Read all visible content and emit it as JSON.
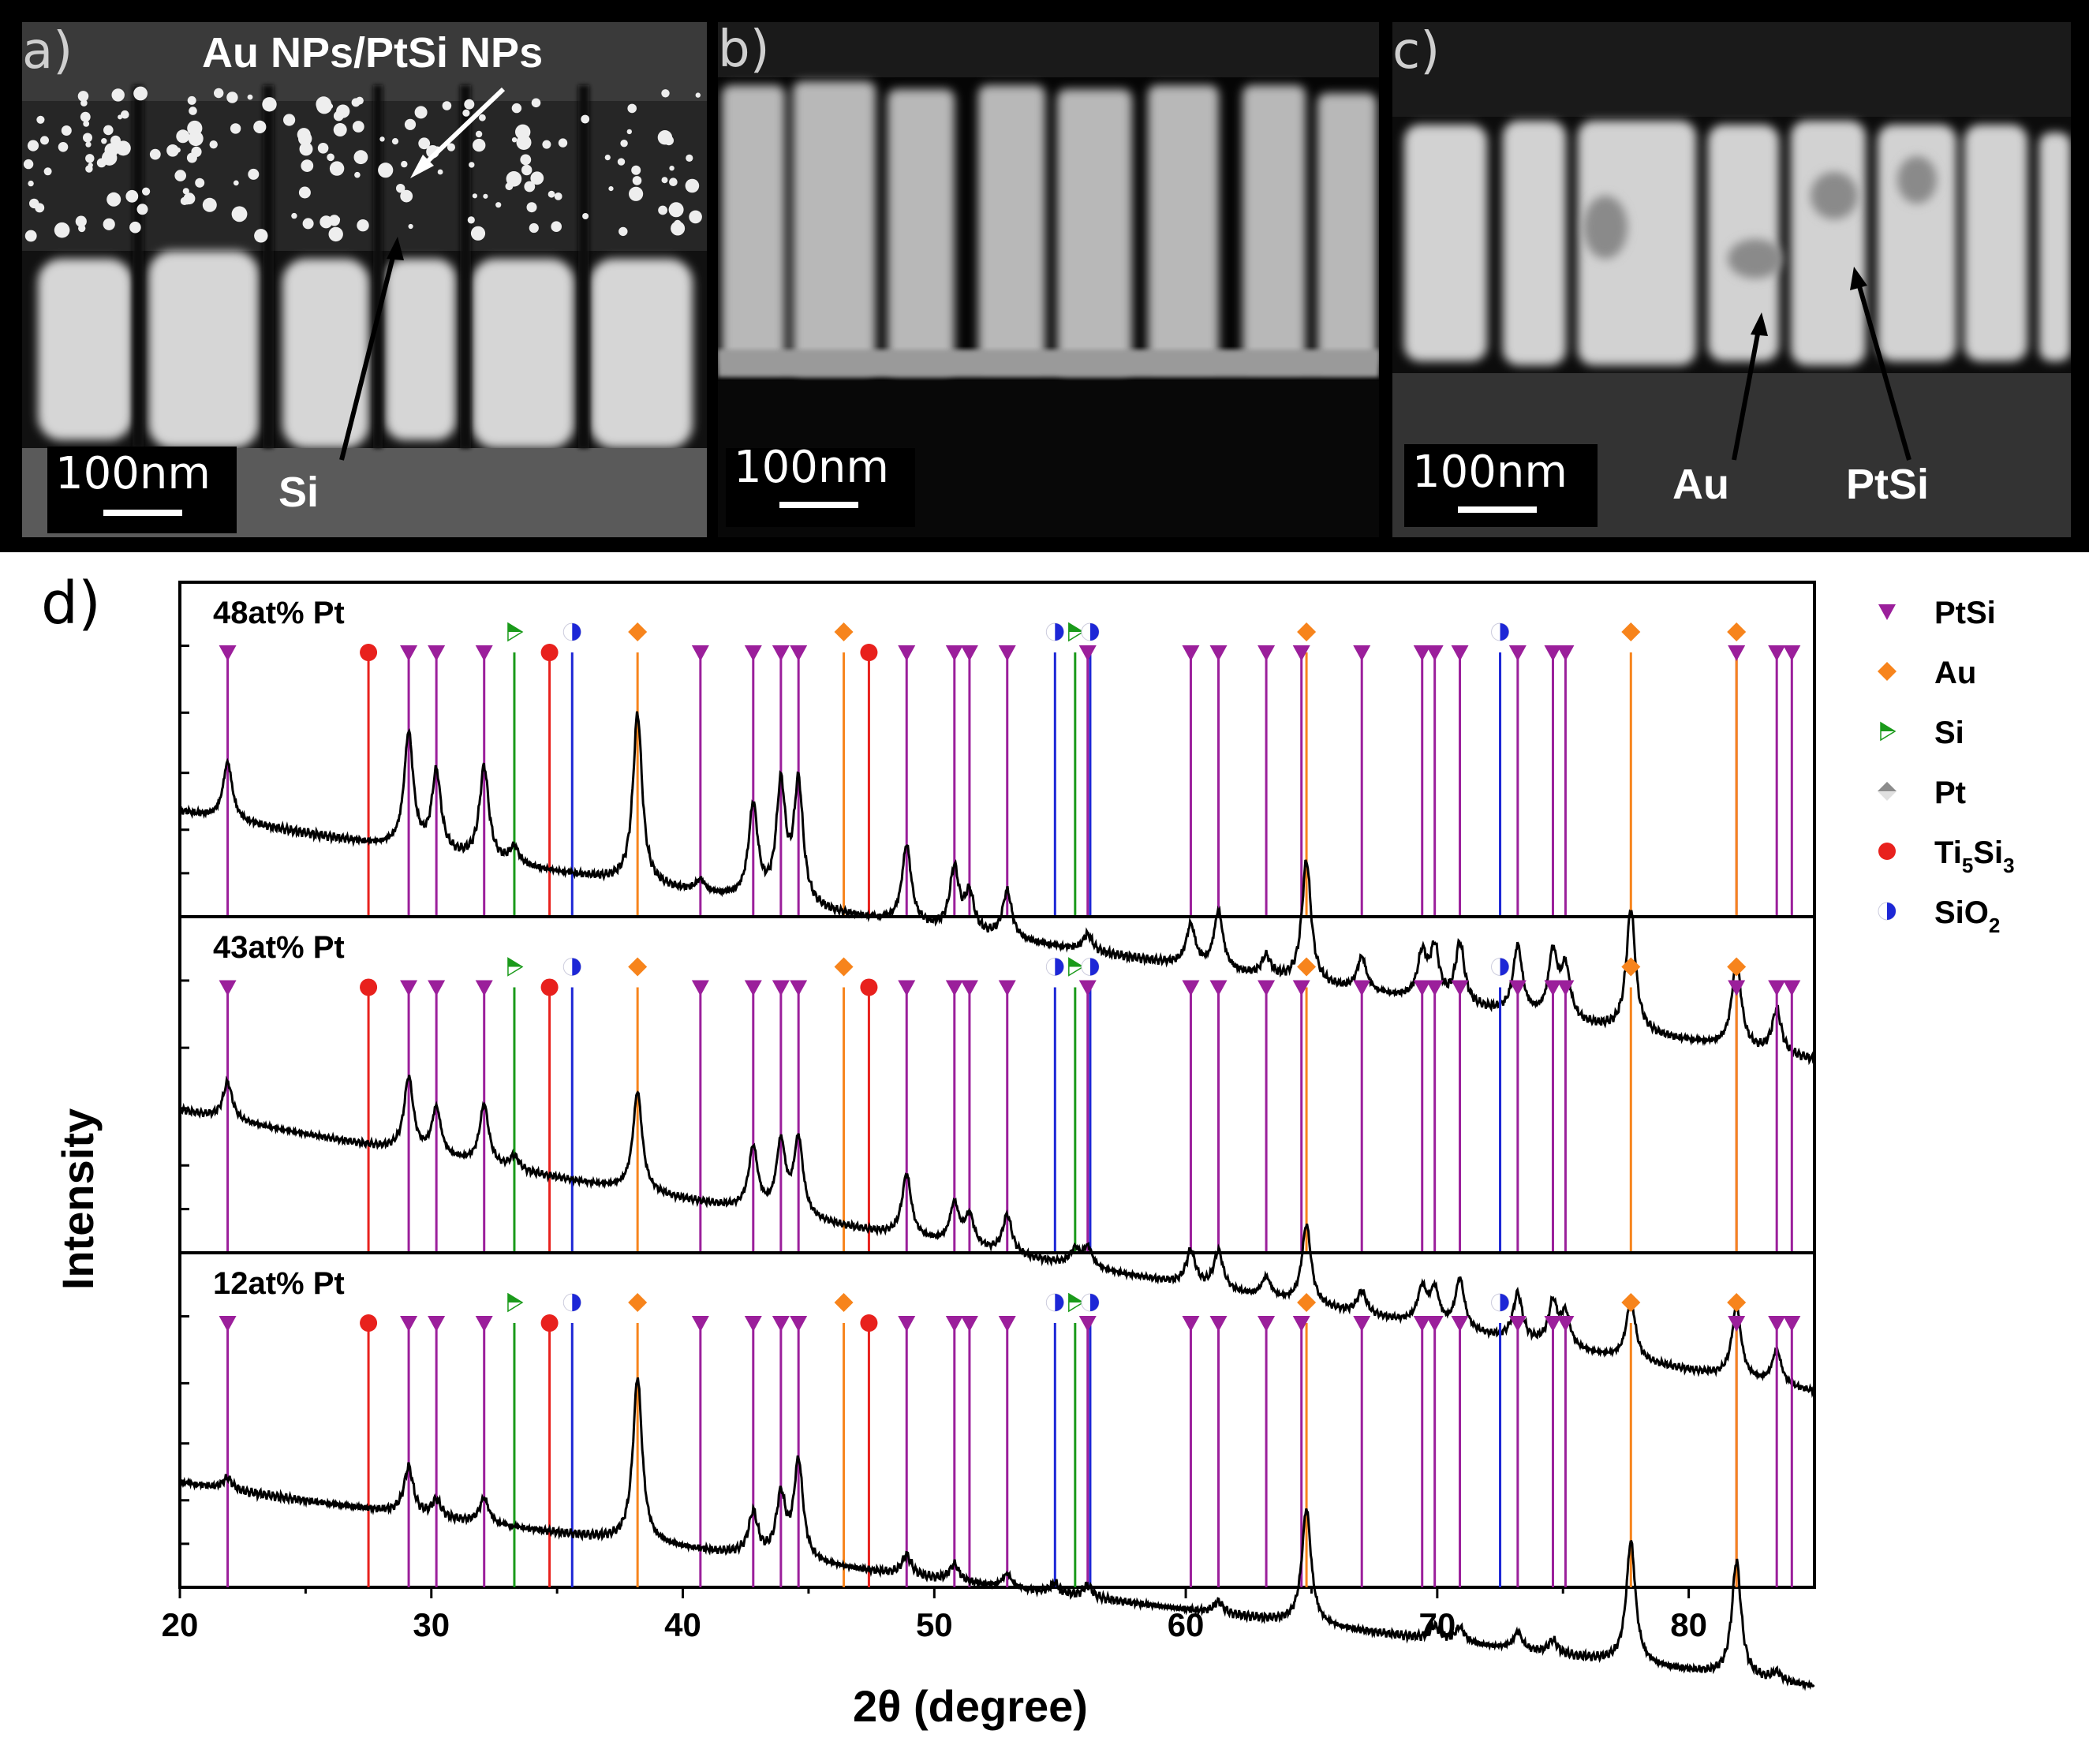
{
  "panels": {
    "a": {
      "label": "a)",
      "scale": "100nm",
      "annotations": [
        "Au NPs/PtSi NPs",
        "Si"
      ]
    },
    "b": {
      "label": "b)",
      "scale": "100nm"
    },
    "c": {
      "label": "c)",
      "scale": "100nm",
      "annotations": [
        "Au",
        "PtSi"
      ]
    },
    "d": {
      "label": "d)"
    }
  },
  "colors": {
    "PtSi": "#9b1f9b",
    "Au": "#f7841c",
    "Si": "#1a9a1a",
    "Pt": "#8c8c8c",
    "Ti5Si3": "#e8211d",
    "SiO2": "#1d27d6"
  },
  "chart_data": {
    "type": "line",
    "xlabel": "2θ (degree)",
    "ylabel": "Intensity",
    "xlim": [
      20,
      85
    ],
    "xticks": [
      20,
      30,
      40,
      50,
      60,
      70,
      80
    ],
    "y_tick_labels_shown": false,
    "legend_placement": "right",
    "legend": [
      {
        "name": "PtSi",
        "marker": "triangle-down"
      },
      {
        "name": "Au",
        "marker": "diamond"
      },
      {
        "name": "Si",
        "marker": "triangle-right"
      },
      {
        "name": "Pt",
        "marker": "diamond-half"
      },
      {
        "name": "Ti5Si3",
        "marker": "circle",
        "display": {
          "base": "Ti",
          "sub1": "5",
          "mid": "Si",
          "sub2": "3"
        }
      },
      {
        "name": "SiO2",
        "marker": "half-circle",
        "display": {
          "base": "SiO",
          "sub1": "2"
        }
      }
    ],
    "reference_lines": {
      "PtSi": [
        21.9,
        29.1,
        30.2,
        32.1,
        40.7,
        42.8,
        43.9,
        44.6,
        48.9,
        50.8,
        51.4,
        52.9,
        56.1,
        60.2,
        61.3,
        63.2,
        64.6,
        67.0,
        69.4,
        69.9,
        70.9,
        73.2,
        74.6,
        75.1,
        81.9,
        83.5,
        84.1
      ],
      "Au": [
        38.2,
        46.4,
        64.8,
        77.7,
        81.9
      ],
      "Si": [
        33.3,
        55.6
      ],
      "Ti5Si3": [
        27.5,
        34.7,
        47.4
      ],
      "SiO2": [
        35.6,
        54.8,
        56.2,
        72.5
      ]
    },
    "series": [
      {
        "name": "48at% Pt",
        "baseline": 0.4,
        "slope": 0.0022,
        "peaks": [
          [
            21.9,
            0.34
          ],
          [
            29.1,
            0.68
          ],
          [
            30.2,
            0.47
          ],
          [
            32.1,
            0.55
          ],
          [
            33.3,
            0.1
          ],
          [
            38.2,
            1.0
          ],
          [
            40.7,
            0.07
          ],
          [
            42.8,
            0.55
          ],
          [
            43.9,
            0.68
          ],
          [
            44.6,
            0.71
          ],
          [
            48.9,
            0.46
          ],
          [
            50.8,
            0.36
          ],
          [
            51.4,
            0.22
          ],
          [
            52.9,
            0.28
          ],
          [
            56.1,
            0.1
          ],
          [
            60.2,
            0.24
          ],
          [
            61.3,
            0.34
          ],
          [
            63.2,
            0.12
          ],
          [
            64.8,
            0.72
          ],
          [
            67.0,
            0.2
          ],
          [
            69.4,
            0.26
          ],
          [
            69.9,
            0.3
          ],
          [
            70.9,
            0.36
          ],
          [
            73.2,
            0.4
          ],
          [
            74.6,
            0.38
          ],
          [
            75.1,
            0.3
          ],
          [
            77.7,
            0.72
          ],
          [
            81.9,
            0.52
          ],
          [
            83.5,
            0.26
          ]
        ]
      },
      {
        "name": "43at% Pt",
        "baseline": 0.55,
        "slope": 0.0032,
        "peaks": [
          [
            21.9,
            0.28
          ],
          [
            29.1,
            0.56
          ],
          [
            30.2,
            0.36
          ],
          [
            32.1,
            0.45
          ],
          [
            33.3,
            0.1
          ],
          [
            38.2,
            0.75
          ],
          [
            42.8,
            0.47
          ],
          [
            43.9,
            0.53
          ],
          [
            44.6,
            0.58
          ],
          [
            48.9,
            0.47
          ],
          [
            50.8,
            0.3
          ],
          [
            51.4,
            0.23
          ],
          [
            52.9,
            0.29
          ],
          [
            55.6,
            0.12
          ],
          [
            56.1,
            0.15
          ],
          [
            60.2,
            0.26
          ],
          [
            61.3,
            0.29
          ],
          [
            63.2,
            0.15
          ],
          [
            64.8,
            0.6
          ],
          [
            67.0,
            0.17
          ],
          [
            69.4,
            0.26
          ],
          [
            69.9,
            0.26
          ],
          [
            70.9,
            0.38
          ],
          [
            73.2,
            0.35
          ],
          [
            74.6,
            0.32
          ],
          [
            75.1,
            0.25
          ],
          [
            77.7,
            0.45
          ],
          [
            81.9,
            0.54
          ],
          [
            83.5,
            0.26
          ]
        ]
      },
      {
        "name": "12at% Pt",
        "baseline": 0.4,
        "slope": 0.0018,
        "peaks": [
          [
            21.9,
            0.07
          ],
          [
            29.1,
            0.28
          ],
          [
            30.2,
            0.1
          ],
          [
            32.1,
            0.15
          ],
          [
            38.2,
            0.97
          ],
          [
            42.8,
            0.25
          ],
          [
            43.9,
            0.36
          ],
          [
            44.6,
            0.58
          ],
          [
            48.9,
            0.12
          ],
          [
            50.8,
            0.1
          ],
          [
            52.9,
            0.08
          ],
          [
            54.8,
            0.06
          ],
          [
            56.1,
            0.07
          ],
          [
            61.3,
            0.07
          ],
          [
            64.8,
            0.68
          ],
          [
            69.9,
            0.08
          ],
          [
            70.9,
            0.09
          ],
          [
            73.2,
            0.1
          ],
          [
            74.6,
            0.08
          ],
          [
            77.7,
            0.72
          ],
          [
            81.9,
            0.68
          ],
          [
            83.5,
            0.05
          ]
        ]
      }
    ]
  }
}
